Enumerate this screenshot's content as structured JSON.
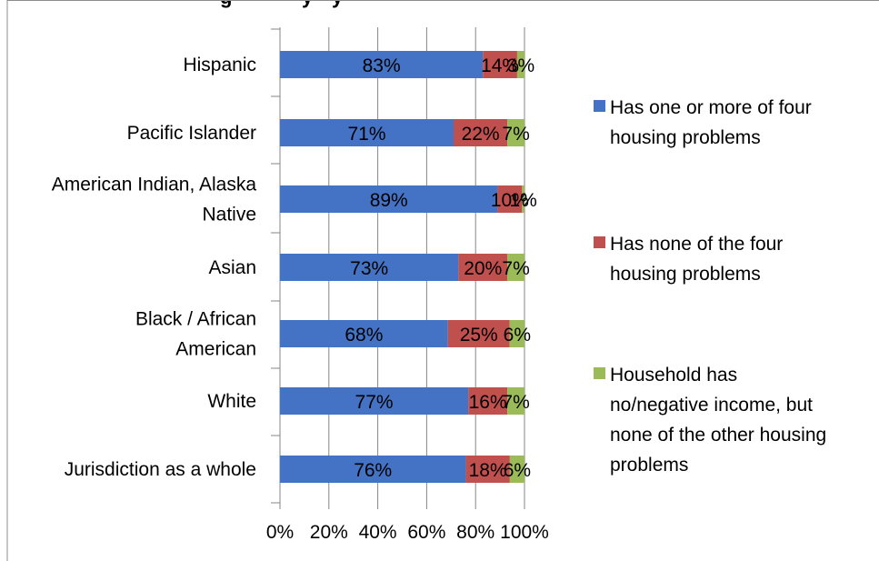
{
  "chart_data": {
    "type": "bar",
    "orientation": "horizontal",
    "stacked": "percent",
    "title": "",
    "title_visible_fragment": "g",
    "title_visible_fragment2": "y",
    "title_visible_fragment3": "y",
    "categories": [
      [
        "Hispanic"
      ],
      [
        "Pacific Islander"
      ],
      [
        "American Indian, Alaska",
        "Native"
      ],
      [
        "Asian"
      ],
      [
        "Black / African",
        "American"
      ],
      [
        "White"
      ],
      [
        "Jurisdiction as a whole"
      ]
    ],
    "series": [
      {
        "name": [
          "Has one or more of four",
          "housing problems"
        ],
        "color": "#4472C4",
        "values": [
          83,
          71,
          89,
          73,
          68,
          77,
          76
        ],
        "labels": [
          "83%",
          "71%",
          "89%",
          "73%",
          "68%",
          "77%",
          "76%"
        ]
      },
      {
        "name": [
          "Has none of the four",
          "housing problems"
        ],
        "color": "#C0504D",
        "values": [
          14,
          22,
          10,
          20,
          25,
          16,
          18
        ],
        "labels": [
          "14%",
          "22%",
          "10%",
          "20%",
          "25%",
          "16%",
          "18%"
        ]
      },
      {
        "name": [
          "Household has",
          "no/negative income, but",
          "none of the other housing",
          "problems"
        ],
        "color": "#9BBB59",
        "values": [
          3,
          7,
          1,
          7,
          6,
          7,
          6
        ],
        "labels": [
          "3%",
          "7%",
          "1%",
          "7%",
          "6%",
          "7%",
          "6%"
        ]
      }
    ],
    "xaxis_ticks": [
      "0%",
      "20%",
      "40%",
      "60%",
      "80%",
      "100%"
    ],
    "xlim": [
      0,
      100
    ],
    "grid": "vertical",
    "legend_position": "right",
    "xlabel": "",
    "ylabel": ""
  }
}
